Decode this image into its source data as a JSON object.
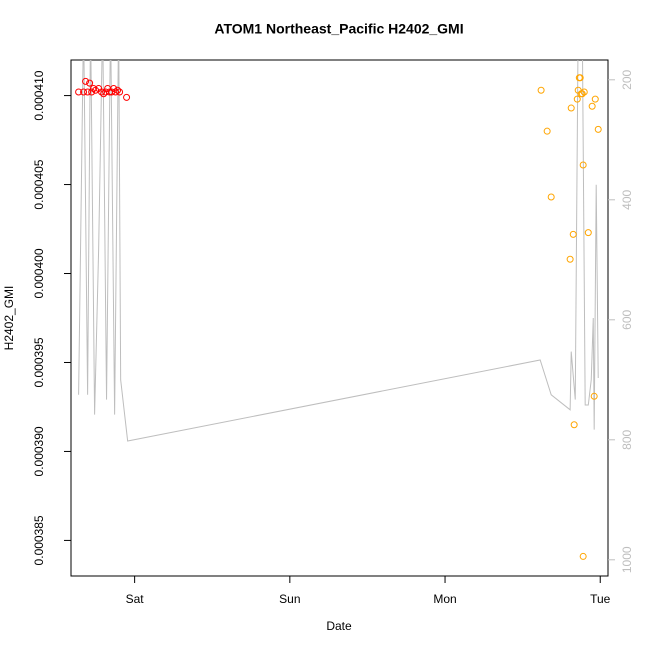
{
  "chart_data": {
    "type": "scatter",
    "title": "ATOM1 Northeast_Pacific H2402_GMI",
    "x_label": "Date",
    "y_label": "H2402_GMI",
    "xlim": [
      -0.41,
      3.05
    ],
    "xticks": [
      {
        "value": 0,
        "label": "Sat"
      },
      {
        "value": 1,
        "label": "Sun"
      },
      {
        "value": 2,
        "label": "Mon"
      },
      {
        "value": 3,
        "label": "Tue"
      }
    ],
    "ylim": [
      0.000383,
      0.000412
    ],
    "yticks": [
      {
        "value": 0.000385,
        "label": "0.000385"
      },
      {
        "value": 0.00039,
        "label": "0.000390"
      },
      {
        "value": 0.000395,
        "label": "0.000395"
      },
      {
        "value": 0.0004,
        "label": "0.000400"
      },
      {
        "value": 0.000405,
        "label": "0.000405"
      },
      {
        "value": 0.00041,
        "label": "0.000410"
      }
    ],
    "y2lim": [
      1027,
      167
    ],
    "y2reversed": true,
    "y2ticks": [
      200,
      400,
      600,
      800,
      1000
    ],
    "y2color": "#bebebe",
    "series": [
      {
        "type": "points",
        "color": "#ff0000",
        "x": [
          -0.361,
          -0.329,
          -0.316,
          -0.303,
          -0.29,
          -0.277,
          -0.265,
          -0.252,
          -0.232,
          -0.213,
          -0.2,
          -0.187,
          -0.174,
          -0.161,
          -0.148,
          -0.135,
          -0.123,
          -0.11,
          -0.097,
          -0.052
        ],
        "values": [
          0.0004102,
          0.0004102,
          0.0004108,
          0.0004102,
          0.0004107,
          0.0004102,
          0.0004104,
          0.0004103,
          0.0004104,
          0.0004102,
          0.0004101,
          0.0004102,
          0.0004104,
          0.0004102,
          0.0004102,
          0.0004104,
          0.0004102,
          0.0004103,
          0.0004102,
          0.0004099
        ]
      },
      {
        "type": "points",
        "color": "#ffa500",
        "x": [
          2.619,
          2.658,
          2.684,
          2.806,
          2.813,
          2.826,
          2.832,
          2.852,
          2.858,
          2.865,
          2.871,
          2.877,
          2.884,
          2.89,
          2.89,
          2.897,
          2.923,
          2.948,
          2.961,
          2.968,
          2.987
        ],
        "values": [
          0.0004103,
          0.000408,
          0.0004043,
          0.0004008,
          0.0004093,
          0.0004022,
          0.0003915,
          0.0004098,
          0.0004103,
          0.000411,
          0.000411,
          0.0004101,
          0.0004101,
          0.0004061,
          0.0003841,
          0.0004102,
          0.0004023,
          0.0004094,
          0.0003931,
          0.0004098,
          0.0004081
        ]
      },
      {
        "type": "line",
        "axis": "y2",
        "color": "#bebebe",
        "x": [
          -0.361,
          -0.329,
          -0.303,
          -0.284,
          -0.258,
          -0.232,
          -0.206,
          -0.181,
          -0.155,
          -0.129,
          -0.103,
          -0.09,
          -0.045,
          2.613,
          2.684,
          2.806,
          2.813,
          2.839,
          2.858,
          2.884,
          2.903,
          2.923,
          2.942,
          2.955,
          2.961,
          2.974,
          2.987
        ],
        "values": [
          725,
          100,
          725,
          100,
          758,
          483,
          100,
          733,
          100,
          758,
          100,
          700,
          802,
          667,
          725,
          750,
          653,
          733,
          100,
          100,
          742,
          742,
          700,
          597,
          783,
          375,
          697
        ]
      }
    ]
  }
}
